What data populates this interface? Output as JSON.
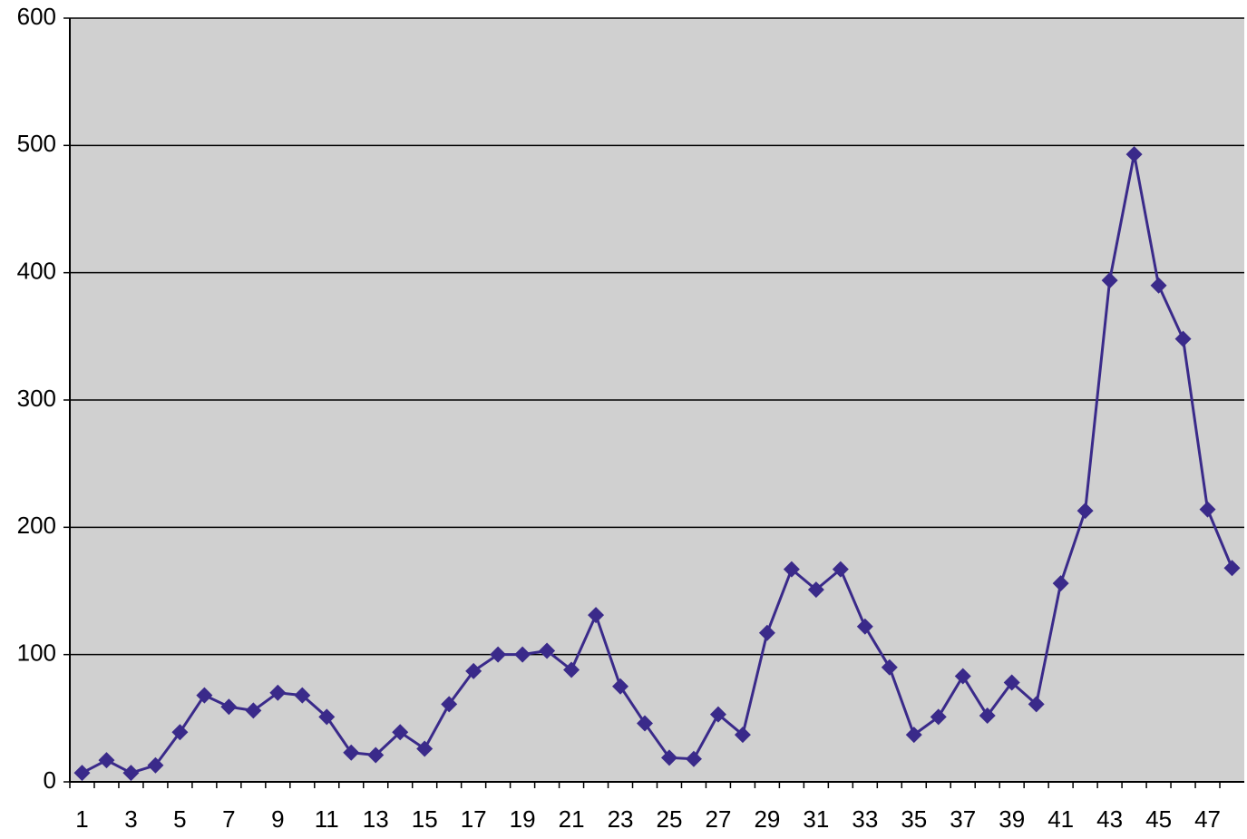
{
  "chart_data": {
    "type": "line",
    "categories": [
      1,
      null,
      3,
      null,
      5,
      null,
      7,
      null,
      9,
      null,
      11,
      null,
      13,
      null,
      15,
      null,
      17,
      null,
      19,
      null,
      21,
      null,
      23,
      null,
      25,
      null,
      27,
      null,
      29,
      null,
      31,
      null,
      33,
      null,
      35,
      null,
      37,
      null,
      39,
      null,
      41,
      null,
      43,
      null,
      45,
      null,
      47,
      null
    ],
    "values": [
      7,
      17,
      7,
      13,
      39,
      68,
      59,
      56,
      70,
      68,
      51,
      23,
      21,
      39,
      26,
      61,
      87,
      100,
      100,
      103,
      88,
      131,
      75,
      46,
      19,
      18,
      53,
      37,
      117,
      167,
      151,
      167,
      122,
      90,
      37,
      51,
      83,
      52,
      78,
      61,
      156,
      213,
      394,
      493,
      390,
      348,
      214,
      168
    ],
    "color": "#3a2a8a",
    "ylim": [
      0,
      600
    ],
    "yticks": [
      0,
      100,
      200,
      300,
      400,
      500,
      600
    ],
    "grid": true
  }
}
